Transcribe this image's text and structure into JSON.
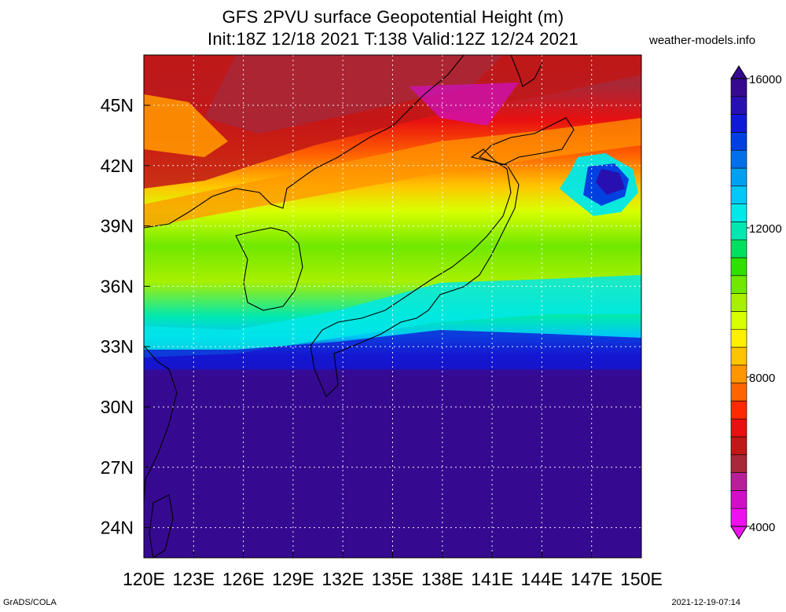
{
  "title": {
    "line1": "GFS 2PVU surface Geopotential Height (m)",
    "line2": "Init:18Z 12/18 2021 T:138 Valid:12Z 12/24 2021"
  },
  "credit": "weather-models.info",
  "footer": {
    "left": "GrADS/COLA",
    "right": "2021-12-19-07:14"
  },
  "map": {
    "lon_range": [
      120,
      150
    ],
    "lat_range": [
      22.5,
      47.5
    ],
    "lon_ticks": [
      "120E",
      "123E",
      "126E",
      "129E",
      "132E",
      "135E",
      "138E",
      "141E",
      "144E",
      "147E",
      "150E"
    ],
    "lat_ticks": [
      "24N",
      "27N",
      "30N",
      "33N",
      "36N",
      "39N",
      "42N",
      "45N"
    ],
    "variable": "2PVU surface geopotential height",
    "units": "m"
  },
  "colorbar": {
    "labels": [
      "16000",
      "12000",
      "8000",
      "4000"
    ],
    "min": 4000,
    "max": 16000,
    "colors": [
      "#ee10ee",
      "#d010c8",
      "#b8209a",
      "#a82838",
      "#c01818",
      "#e81010",
      "#ff2a00",
      "#ff6400",
      "#ff9600",
      "#ffc400",
      "#fff000",
      "#d8ff00",
      "#a8f000",
      "#70e800",
      "#30e000",
      "#00e060",
      "#00e8b0",
      "#00e8e8",
      "#00c8f8",
      "#00a0f0",
      "#0070e8",
      "#0040e0",
      "#1018d8",
      "#2810b0",
      "#360a90"
    ]
  }
}
